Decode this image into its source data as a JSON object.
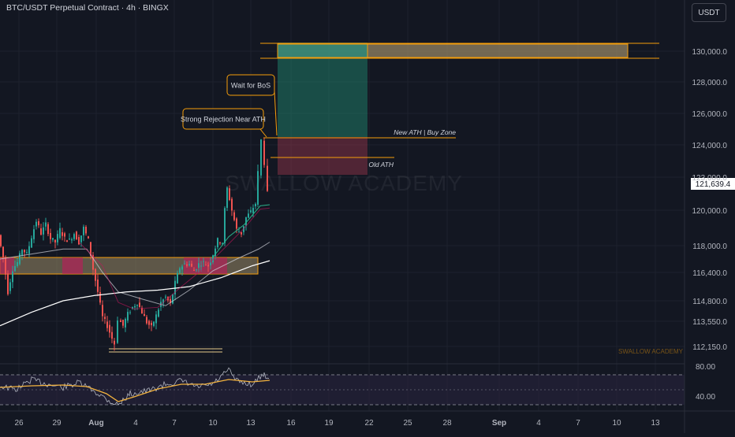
{
  "header": {
    "title": "BTC/USDT Perpetual Contract · 4h · BINGX",
    "currency": "USDT"
  },
  "watermark": "SWALLOW ACADEMY",
  "footer_watermark": "SWALLOW ACADEMY",
  "colors": {
    "background": "#131722",
    "up": "#26a69a",
    "down": "#ef5350",
    "grid": "#1e222d",
    "accent": "#f59e0b",
    "price_label_bg": "#ffffff",
    "demand_zone": "#9c8c68",
    "ma_fast": "#2bb08a",
    "ma_slow": "#ffffff",
    "rsi_line": "#b0b4bf",
    "rsi_ma": "#f3b33e",
    "rsi_band": "#2a2440"
  },
  "annotations": {
    "wait_bos": "Wait for BoS",
    "rejection": "Strong Rejection Near ATH",
    "new_ath": "New ATH | Buy Zone",
    "old_ath": "Old ATH"
  },
  "chart_data": {
    "type": "candlestick",
    "symbol": "BTC/USDT Perpetual Contract",
    "timeframe": "4h",
    "exchange": "BINGX",
    "last_price": "121,639.4",
    "y_ticks": [
      "130,000.0",
      "128,000.0",
      "126,000.0",
      "124,000.0",
      "123,000.0",
      "120,000.0",
      "118,000.0",
      "116,400.0",
      "114,800.0",
      "113,550.0",
      "112,150.0"
    ],
    "x_ticks": [
      "26",
      "29",
      "Aug",
      "4",
      "7",
      "10",
      "13",
      "16",
      "19",
      "22",
      "25",
      "28",
      "Sep",
      "4",
      "7",
      "10",
      "13"
    ],
    "rsi_ticks": [
      "80.00",
      "40.00"
    ],
    "new_ath_level": 124400,
    "old_ath_level": 123200,
    "target_zone": [
      129500,
      130500
    ],
    "demand_zone": [
      116400,
      117200
    ],
    "double_bottom_level": 112100
  }
}
